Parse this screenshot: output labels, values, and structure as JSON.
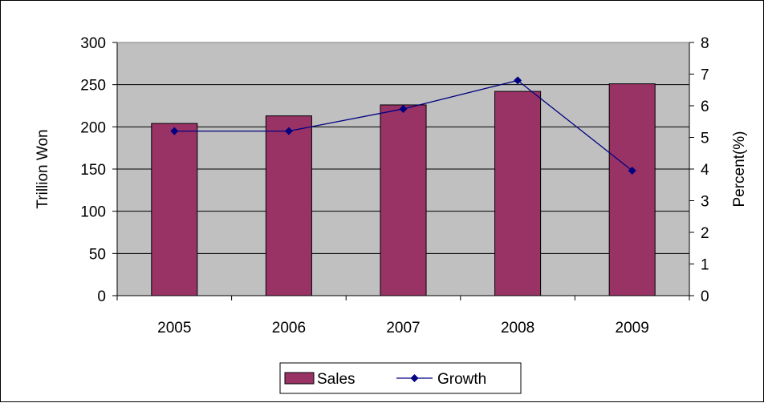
{
  "chart_data": {
    "type": "bar",
    "categories": [
      "2005",
      "2006",
      "2007",
      "2008",
      "2009"
    ],
    "series": [
      {
        "name": "Sales",
        "type": "bar",
        "axis": "left",
        "values": [
          204,
          213,
          226,
          242,
          251
        ],
        "color": "#993366"
      },
      {
        "name": "Growth",
        "type": "line",
        "axis": "right",
        "values": [
          5.2,
          5.2,
          5.9,
          6.8,
          3.95
        ],
        "color": "#000080"
      }
    ],
    "y_left": {
      "label": "Trillion Won",
      "ticks": [
        "0",
        "50",
        "100",
        "150",
        "200",
        "250",
        "300"
      ],
      "min": 0,
      "max": 300
    },
    "y_right": {
      "label": "Percent(%)",
      "ticks": [
        "0",
        "1",
        "2",
        "3",
        "4",
        "5",
        "6",
        "7",
        "8"
      ],
      "min": 0,
      "max": 8
    },
    "grid": true,
    "plot_background": "#c0c0c0",
    "legend": {
      "placement": "bottom",
      "entries": [
        "Sales",
        "Growth"
      ]
    }
  }
}
